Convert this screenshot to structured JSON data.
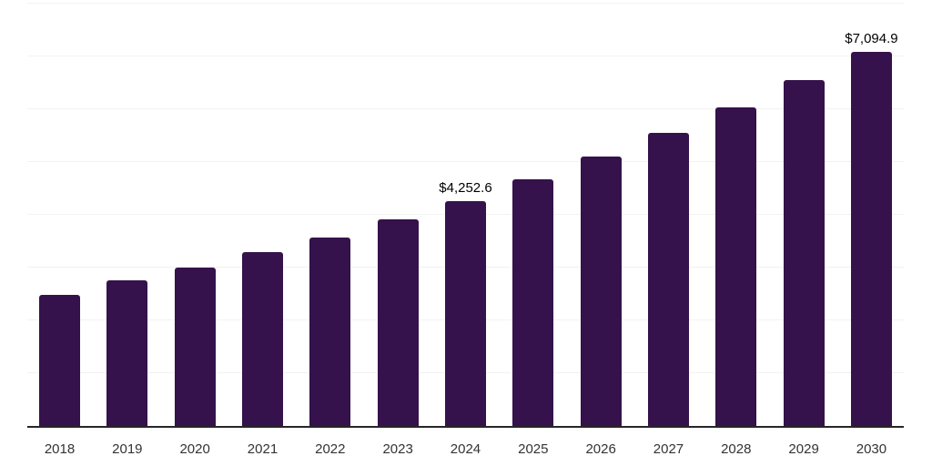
{
  "chart_data": {
    "type": "bar",
    "title": "",
    "xlabel": "",
    "ylabel": "",
    "categories": [
      "2018",
      "2019",
      "2020",
      "2021",
      "2022",
      "2023",
      "2024",
      "2025",
      "2026",
      "2027",
      "2028",
      "2029",
      "2030"
    ],
    "values": [
      2475,
      2757,
      2997,
      3288,
      3562,
      3921,
      4252.6,
      4674,
      5100,
      5548,
      6027,
      6550,
      7094.9
    ],
    "data_labels": [
      "",
      "",
      "",
      "",
      "",
      "",
      "$4,252.6",
      "",
      "",
      "",
      "",
      "",
      "$7,094.9"
    ],
    "ylim": [
      0,
      8000
    ],
    "gridline_step": 1000,
    "grid": "horizontal",
    "y_axis_tick_labels": "none",
    "legend_position": "none",
    "colors": {
      "bar": "#35124B",
      "axis_line": "#262626",
      "gridline": "#F2F2F2",
      "data_label": "#000000",
      "tick_label": "#333333",
      "background": "#FFFFFF"
    }
  }
}
